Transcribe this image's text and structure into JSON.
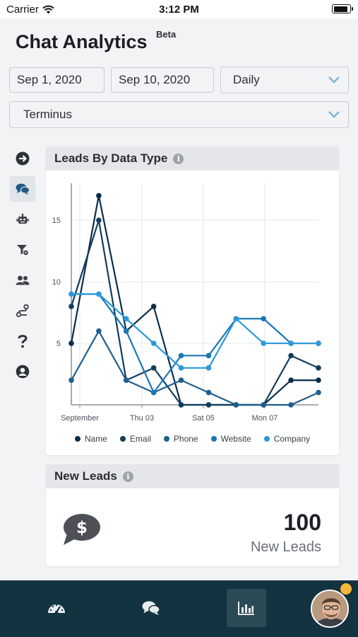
{
  "status_bar": {
    "carrier": "Carrier",
    "time": "3:12 PM"
  },
  "header": {
    "title": "Chat Analytics",
    "badge": "Beta"
  },
  "filters": {
    "start_date": "Sep 1, 2020",
    "end_date": "Sep 10, 2020",
    "interval": "Daily",
    "account": "Terminus"
  },
  "sidebar": {
    "items": [
      {
        "icon": "arrow-right-circle-icon"
      },
      {
        "icon": "chat-bubbles-icon",
        "active": true
      },
      {
        "icon": "robot-icon"
      },
      {
        "icon": "funnel-filter-icon"
      },
      {
        "icon": "users-icon"
      },
      {
        "icon": "route-icon"
      },
      {
        "icon": "question-icon"
      },
      {
        "icon": "user-circle-icon"
      }
    ]
  },
  "leads_chart_card": {
    "title": "Leads By Data Type",
    "info_icon": "i"
  },
  "chart_data": {
    "type": "line",
    "title": "Leads By Data Type",
    "x": [
      "Sep 1",
      "Sep 2",
      "Sep 3",
      "Sep 4",
      "Sep 5",
      "Sep 6",
      "Sep 7",
      "Sep 8",
      "Sep 9",
      "Sep 10"
    ],
    "x_tick_labels": [
      "September",
      "Thu 03",
      "Sat 05",
      "Mon 07"
    ],
    "y_tick_labels": [
      "5",
      "10",
      "15"
    ],
    "ylim": [
      0,
      18
    ],
    "grid": true,
    "legend_position": "bottom",
    "series": [
      {
        "name": "Name",
        "color": "#0b2d4a",
        "values": [
          5,
          17,
          6,
          8,
          0,
          0,
          0,
          0,
          2,
          2
        ]
      },
      {
        "name": "Email",
        "color": "#123e5e",
        "values": [
          8,
          15,
          2,
          3,
          0,
          0,
          0,
          0,
          4,
          3
        ]
      },
      {
        "name": "Phone",
        "color": "#1f5f8e",
        "values": [
          2,
          6,
          2,
          1,
          2,
          1,
          0,
          0,
          0,
          1
        ]
      },
      {
        "name": "Website",
        "color": "#1a77b5",
        "values": [
          9,
          9,
          6,
          1,
          4,
          4,
          7,
          7,
          5,
          5
        ]
      },
      {
        "name": "Company",
        "color": "#2b99da",
        "values": [
          9,
          9,
          7,
          5,
          3,
          3,
          7,
          5,
          5,
          5
        ]
      }
    ]
  },
  "new_leads_card": {
    "title": "New Leads",
    "info_icon": "i",
    "count": "100",
    "label": "New Leads",
    "icon": "dollar-chat-icon"
  },
  "bottom_nav": {
    "tabs": [
      {
        "icon": "dashboard-gauge-icon"
      },
      {
        "icon": "chat-bubbles-icon"
      },
      {
        "icon": "bar-chart-icon",
        "active": true
      },
      {
        "icon": "profile-avatar"
      }
    ]
  },
  "colors": {
    "bottom_bar": "#12333f",
    "notification": "#f5b73b"
  }
}
